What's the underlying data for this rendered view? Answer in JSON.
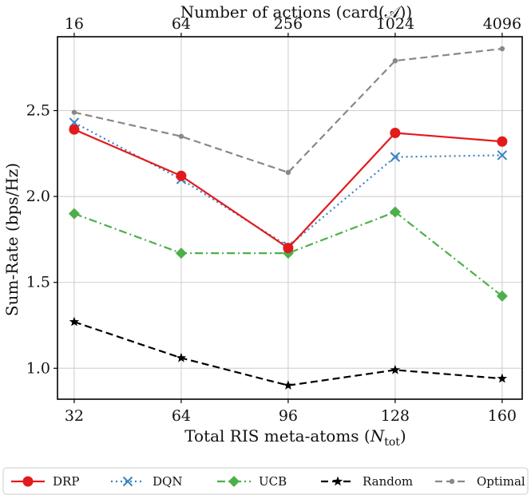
{
  "chart_data": {
    "type": "line",
    "title": "",
    "xlabel": "Total RIS meta-atoms (N_tot)",
    "xlabel_main": "Total RIS meta-atoms (",
    "xlabel_symbol": "N",
    "xlabel_subscript": "tot",
    "xlabel_close": ")",
    "ylabel": "Sum-Rate  (bps/Hz)",
    "top_xlabel": "Number of actions (card(𝒜))",
    "categories": [
      "32",
      "64",
      "96",
      "128",
      "160"
    ],
    "x": [
      32,
      64,
      96,
      128,
      160
    ],
    "top_tick_labels": [
      "16",
      "64",
      "256",
      "1024",
      "4096"
    ],
    "xlim": [
      27,
      166
    ],
    "ylim": [
      0.82,
      2.93
    ],
    "yticks": [
      1.0,
      1.5,
      2.0,
      2.5
    ],
    "ytick_labels": [
      "1.0",
      "1.5",
      "2.0",
      "2.5"
    ],
    "grid": true,
    "legend_position": "bottom-outside",
    "series": [
      {
        "name": "DRP",
        "values": [
          2.39,
          2.12,
          1.7,
          2.37,
          2.32
        ],
        "color": "#e31a1c",
        "linestyle": "solid",
        "marker": "circle"
      },
      {
        "name": "DQN",
        "values": [
          2.43,
          2.1,
          1.71,
          2.23,
          2.24
        ],
        "color": "#3a82c4",
        "linestyle": "dotted",
        "marker": "x"
      },
      {
        "name": "UCB",
        "values": [
          1.9,
          1.67,
          1.67,
          1.91,
          1.42
        ],
        "color": "#4daf4a",
        "linestyle": "dashdot",
        "marker": "diamond"
      },
      {
        "name": "Random",
        "values": [
          1.27,
          1.06,
          0.9,
          0.99,
          0.94
        ],
        "color": "#000000",
        "linestyle": "dashed",
        "marker": "star"
      },
      {
        "name": "Optimal",
        "values": [
          2.49,
          2.35,
          2.14,
          2.79,
          2.86
        ],
        "color": "#888888",
        "linestyle": "dashed",
        "marker": "dot"
      }
    ]
  }
}
